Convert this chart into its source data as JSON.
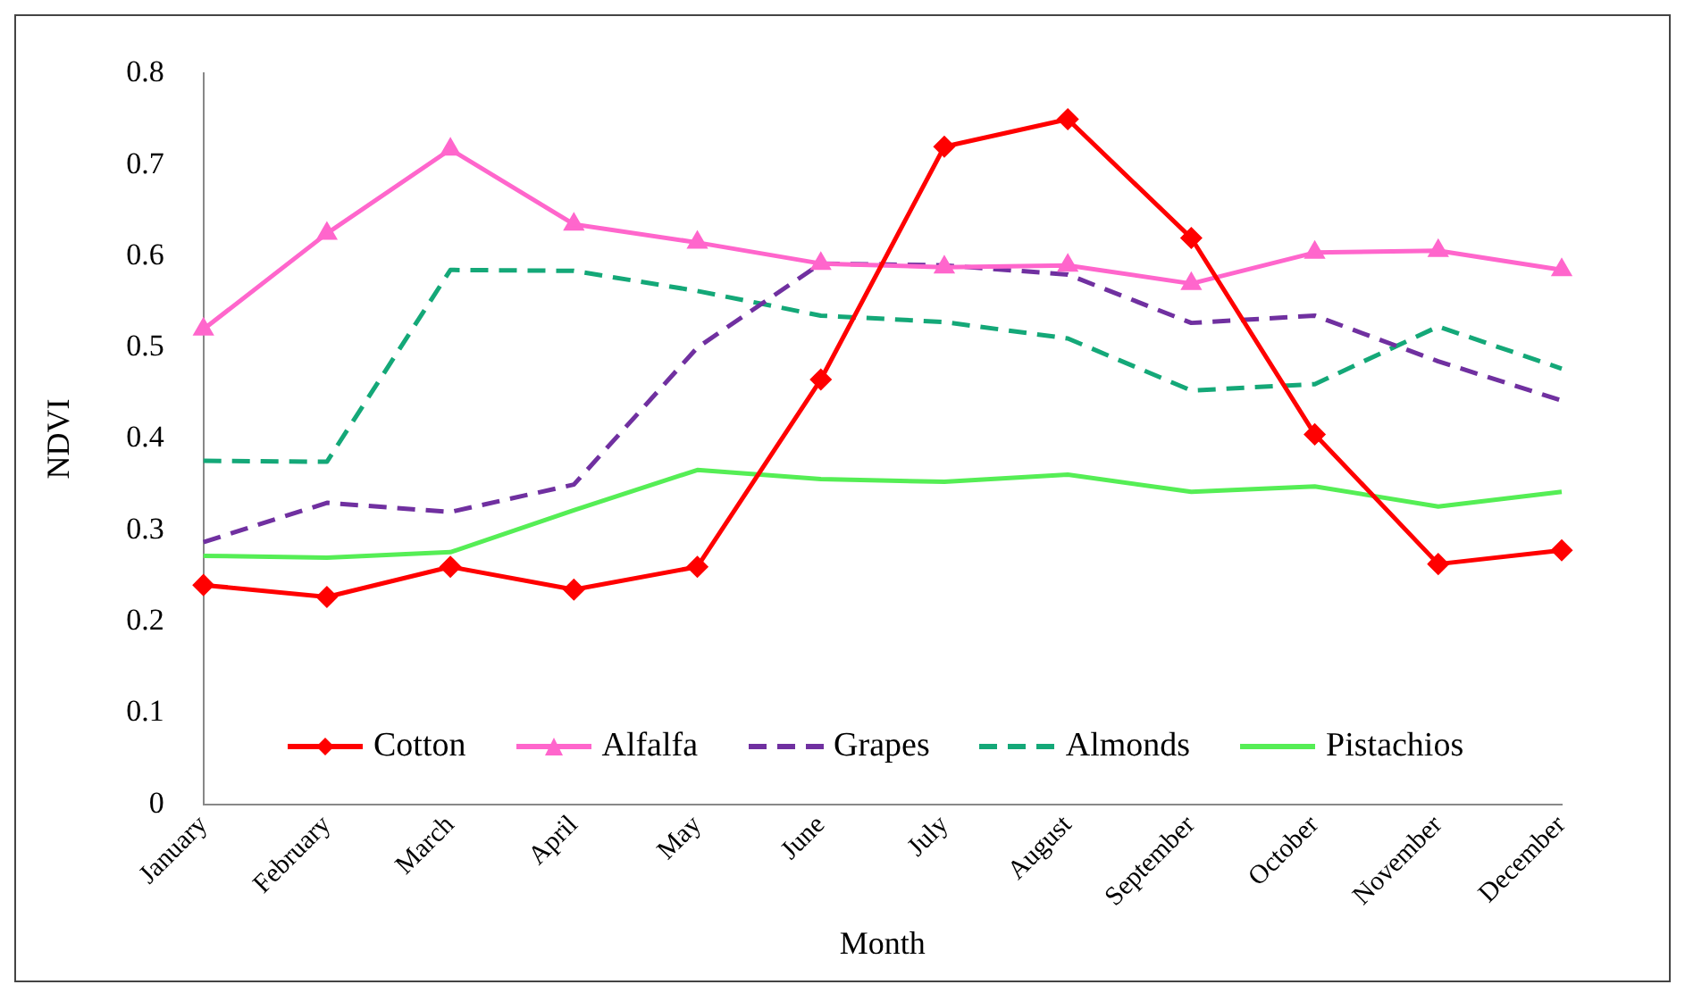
{
  "chart_data": {
    "type": "line",
    "xlabel": "Month",
    "ylabel": "NDVI",
    "categories": [
      "January",
      "February",
      "March",
      "April",
      "May",
      "June",
      "July",
      "August",
      "September",
      "October",
      "November",
      "December"
    ],
    "series": [
      {
        "name": "Cotton",
        "color": "#ff0000",
        "marker": "diamond",
        "line_style": "solid",
        "values": [
          0.24,
          0.227,
          0.26,
          0.235,
          0.26,
          0.465,
          0.72,
          0.75,
          0.62,
          0.405,
          0.263,
          0.278
        ]
      },
      {
        "name": "Alfalfa",
        "color": "#ff66cc",
        "marker": "triangle",
        "line_style": "solid",
        "values": [
          0.52,
          0.625,
          0.717,
          0.635,
          0.615,
          0.592,
          0.588,
          0.59,
          0.57,
          0.604,
          0.606,
          0.585
        ]
      },
      {
        "name": "Grapes",
        "color": "#7030a0",
        "marker": "none",
        "line_style": "dashed",
        "values": [
          0.287,
          0.33,
          0.32,
          0.35,
          0.5,
          0.592,
          0.59,
          0.58,
          0.527,
          0.535,
          0.485,
          0.442
        ]
      },
      {
        "name": "Almonds",
        "color": "#14a878",
        "marker": "none",
        "line_style": "dashed",
        "values": [
          0.376,
          0.375,
          0.585,
          0.584,
          0.562,
          0.535,
          0.528,
          0.51,
          0.453,
          0.46,
          0.523,
          0.477
        ]
      },
      {
        "name": "Pistachios",
        "color": "#55ee55",
        "marker": "none",
        "line_style": "solid",
        "values": [
          0.272,
          0.27,
          0.276,
          0.322,
          0.366,
          0.356,
          0.353,
          0.361,
          0.342,
          0.348,
          0.326,
          0.342
        ]
      }
    ],
    "ylim": [
      0,
      0.8
    ],
    "yticks": [
      0,
      0.1,
      0.2,
      0.3,
      0.4,
      0.5,
      0.6,
      0.7,
      0.8
    ],
    "grid": false,
    "legend": "bottom"
  }
}
